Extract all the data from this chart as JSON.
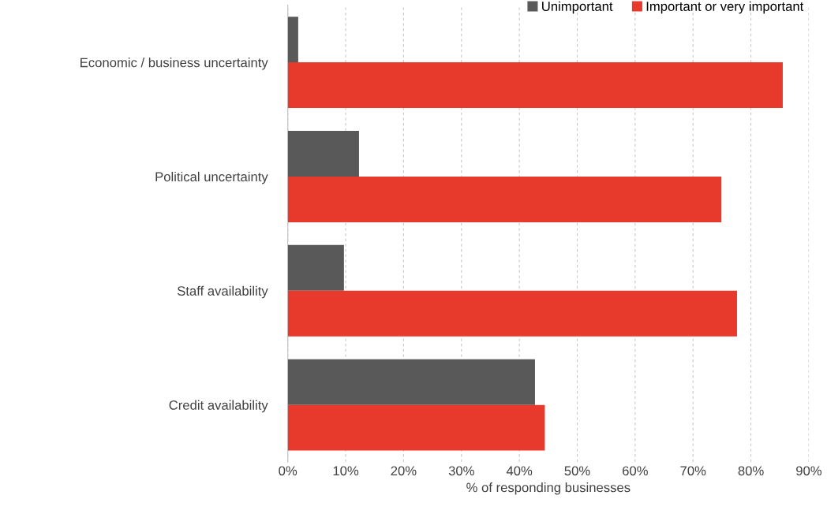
{
  "chart_data": {
    "type": "bar",
    "orientation": "horizontal",
    "xlabel": "% of responding businesses",
    "categories": [
      "Economic / business uncertainty",
      "Political uncertainty",
      "Staff availability",
      "Credit availability"
    ],
    "series": [
      {
        "name": "Unimportant",
        "color": "#595959",
        "values": [
          1.8,
          12.3,
          9.7,
          42.7
        ]
      },
      {
        "name": "Important or very important",
        "color": "#e8392d",
        "values": [
          85.5,
          74.9,
          77.6,
          44.4
        ]
      }
    ],
    "xlim": [
      0,
      90
    ],
    "xticks": [
      {
        "value": 0,
        "label": "0%"
      },
      {
        "value": 10,
        "label": "10%"
      },
      {
        "value": 20,
        "label": "20%"
      },
      {
        "value": 30,
        "label": "30%"
      },
      {
        "value": 40,
        "label": "40%"
      },
      {
        "value": 50,
        "label": "50%"
      },
      {
        "value": 60,
        "label": "60%"
      },
      {
        "value": 70,
        "label": "70%"
      },
      {
        "value": 80,
        "label": "80%"
      },
      {
        "value": 90,
        "label": "90%"
      }
    ],
    "grid": "x",
    "legend": "top right"
  }
}
